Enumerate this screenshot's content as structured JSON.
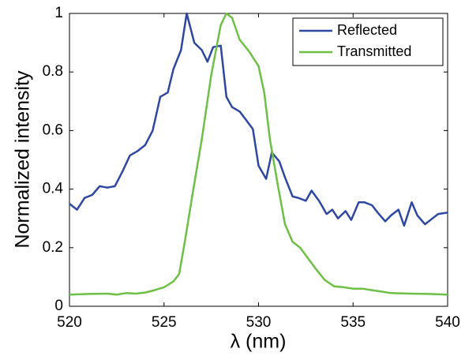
{
  "chart_data": {
    "type": "line",
    "xlabel": "λ (nm)",
    "ylabel": "Normalized intensity",
    "xlim": [
      520,
      540
    ],
    "ylim": [
      0,
      1
    ],
    "xticks": [
      520,
      525,
      530,
      535,
      540
    ],
    "yticks": [
      0,
      0.2,
      0.4,
      0.6,
      0.8,
      1
    ],
    "legend": "upper right",
    "series": [
      {
        "name": "Reflected",
        "color": "#2e47a0",
        "x": [
          520,
          520.4,
          520.8,
          521.2,
          521.6,
          522.0,
          522.4,
          522.8,
          523.2,
          523.6,
          524.0,
          524.4,
          524.8,
          525.2,
          525.5,
          525.9,
          526.2,
          526.6,
          527.0,
          527.3,
          527.6,
          528.0,
          528.3,
          528.6,
          529.0,
          529.3,
          529.7,
          530.0,
          530.4,
          530.7,
          531.1,
          531.4,
          531.8,
          532.1,
          532.5,
          532.8,
          533.2,
          533.6,
          533.9,
          534.2,
          534.6,
          534.9,
          535.3,
          535.6,
          536.0,
          536.3,
          536.7,
          537.0,
          537.4,
          537.7,
          538.1,
          538.4,
          538.8,
          539.2,
          539.5,
          540
        ],
        "values": [
          0.35,
          0.33,
          0.37,
          0.38,
          0.41,
          0.405,
          0.41,
          0.46,
          0.515,
          0.53,
          0.55,
          0.6,
          0.715,
          0.73,
          0.81,
          0.875,
          1.0,
          0.9,
          0.875,
          0.835,
          0.885,
          0.89,
          0.715,
          0.68,
          0.665,
          0.64,
          0.605,
          0.48,
          0.435,
          0.525,
          0.495,
          0.44,
          0.375,
          0.37,
          0.36,
          0.395,
          0.36,
          0.315,
          0.33,
          0.3,
          0.325,
          0.295,
          0.355,
          0.355,
          0.345,
          0.32,
          0.29,
          0.31,
          0.33,
          0.275,
          0.355,
          0.31,
          0.28,
          0.3,
          0.315,
          0.32
        ]
      },
      {
        "name": "Transmitted",
        "color": "#6dbf45",
        "x": [
          520,
          521,
          522,
          522.5,
          523,
          523.5,
          524,
          524.5,
          525,
          525.5,
          525.8,
          526.1,
          526.5,
          527,
          527.5,
          528,
          528.3,
          528.6,
          529,
          529.5,
          530,
          530.3,
          530.6,
          531,
          531.4,
          531.8,
          532.2,
          532.6,
          533,
          533.5,
          534,
          534.5,
          535,
          535.5,
          536,
          536.5,
          537,
          538,
          539,
          540
        ],
        "values": [
          0.04,
          0.042,
          0.043,
          0.04,
          0.045,
          0.043,
          0.047,
          0.055,
          0.065,
          0.085,
          0.11,
          0.22,
          0.38,
          0.57,
          0.79,
          0.96,
          1.0,
          0.985,
          0.91,
          0.87,
          0.82,
          0.73,
          0.57,
          0.42,
          0.28,
          0.22,
          0.2,
          0.165,
          0.13,
          0.09,
          0.068,
          0.065,
          0.06,
          0.06,
          0.055,
          0.05,
          0.045,
          0.043,
          0.042,
          0.04
        ]
      }
    ]
  }
}
